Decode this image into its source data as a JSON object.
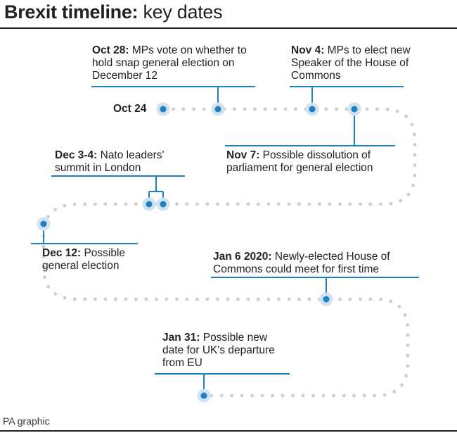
{
  "title": {
    "bold": "Brexit timeline:",
    "rest": " key dates"
  },
  "start_label": "Oct 24",
  "events": [
    {
      "id": "oct28",
      "date": "Oct 28:",
      "text": " MPs vote on whether to hold snap general election on December 12"
    },
    {
      "id": "nov4",
      "date": "Nov 4:",
      "text": " MPs to elect new Speaker of the House of Commons"
    },
    {
      "id": "nov7",
      "date": "Nov 7:",
      "text": " Possible dissolution of parliament for general election"
    },
    {
      "id": "dec34",
      "date": "Dec 3-4:",
      "text": " Nato leaders' summit in London"
    },
    {
      "id": "dec12",
      "date": "Dec 12:",
      "text": " Possible general election"
    },
    {
      "id": "jan6",
      "date": "Jan 6 2020:",
      "text": " Newly-elected House of Commons could meet for first time"
    },
    {
      "id": "jan31",
      "date": "Jan 31:",
      "text": " Possible new date for UK's departure from EU"
    }
  ],
  "credit": "PA graphic",
  "colors": {
    "accent": "#1f7fbf",
    "halo": "#cfe3f1",
    "dots": "#cfcfcf",
    "text": "#222222"
  }
}
